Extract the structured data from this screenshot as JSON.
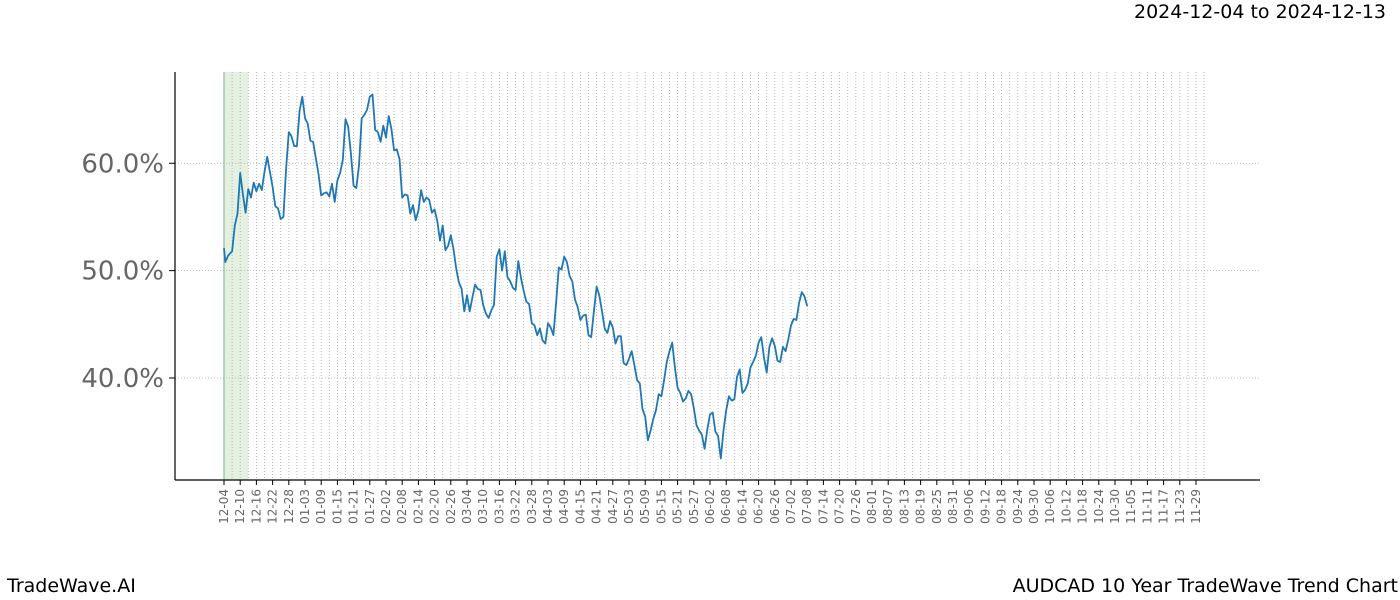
{
  "header": {
    "date_range": "2024-12-04 to 2024-12-13"
  },
  "footer": {
    "brand": "TradeWave.AI",
    "chart_title": "AUDCAD 10 Year TradeWave Trend Chart"
  },
  "colors": {
    "line": "#1f77b4",
    "highlight_fill": "#d9ead3",
    "grid": "#aaaaaa",
    "axis": "#000000",
    "tick_text": "#666666"
  },
  "chart_data": {
    "type": "line",
    "title": "AUDCAD 10 Year TradeWave Trend Chart",
    "xlabel": "",
    "ylabel": "",
    "ylim": [
      30.5,
      68.5
    ],
    "y_ticks": [
      40,
      50,
      60
    ],
    "y_tick_labels": [
      "40.0%",
      "50.0%",
      "60.0%"
    ],
    "y_unit": "%",
    "x_tick_labels": [
      "12-04",
      "12-10",
      "12-16",
      "12-22",
      "12-28",
      "01-03",
      "01-09",
      "01-15",
      "01-21",
      "01-27",
      "02-02",
      "02-08",
      "02-14",
      "02-20",
      "02-26",
      "03-04",
      "03-10",
      "03-16",
      "03-22",
      "03-28",
      "04-03",
      "04-09",
      "04-15",
      "04-21",
      "04-27",
      "05-03",
      "05-09",
      "05-15",
      "05-21",
      "05-27",
      "06-02",
      "06-08",
      "06-14",
      "06-20",
      "06-26",
      "07-02",
      "07-08",
      "07-14",
      "07-20",
      "07-26",
      "08-01",
      "08-07",
      "08-13",
      "08-19",
      "08-25",
      "08-31",
      "09-06",
      "09-12",
      "09-18",
      "09-24",
      "09-30",
      "10-06",
      "10-12",
      "10-18",
      "10-24",
      "10-30",
      "11-05",
      "11-11",
      "11-17",
      "11-23",
      "11-29"
    ],
    "x_tick_step_days": 6,
    "highlight": {
      "start": "12-04",
      "end": "12-13"
    },
    "grid": true,
    "series": [
      {
        "name": "",
        "points_day_value": [
          [
            0,
            52.1
          ],
          [
            0.5,
            50.8
          ],
          [
            1.5,
            51.4
          ],
          [
            3,
            51.8
          ],
          [
            4,
            54.2
          ],
          [
            5,
            55.3
          ],
          [
            6,
            59.1
          ],
          [
            7,
            57.1
          ],
          [
            8,
            55.4
          ],
          [
            9,
            57.6
          ],
          [
            10,
            56.8
          ],
          [
            11,
            58.2
          ],
          [
            12,
            57.4
          ],
          [
            13,
            58.1
          ],
          [
            14,
            57.5
          ],
          [
            15,
            59.2
          ],
          [
            16,
            60.6
          ],
          [
            17,
            59.2
          ],
          [
            18,
            57.8
          ],
          [
            19,
            56.0
          ],
          [
            20,
            55.8
          ],
          [
            21,
            54.8
          ],
          [
            22,
            55.0
          ],
          [
            23,
            59.5
          ],
          [
            24,
            62.9
          ],
          [
            25,
            62.5
          ],
          [
            26,
            61.6
          ],
          [
            27,
            61.6
          ],
          [
            28,
            64.9
          ],
          [
            29,
            66.2
          ],
          [
            30,
            64.2
          ],
          [
            31,
            63.7
          ],
          [
            32,
            62.1
          ],
          [
            33,
            62.0
          ],
          [
            34,
            60.5
          ],
          [
            35,
            59.0
          ],
          [
            36,
            57.0
          ],
          [
            37,
            57.2
          ],
          [
            38,
            57.3
          ],
          [
            39,
            56.9
          ],
          [
            40,
            58.1
          ],
          [
            41,
            56.4
          ],
          [
            42,
            58.4
          ],
          [
            43,
            59.1
          ],
          [
            44,
            60.3
          ],
          [
            45,
            64.1
          ],
          [
            46,
            63.4
          ],
          [
            47,
            60.9
          ],
          [
            48,
            57.9
          ],
          [
            49,
            57.7
          ],
          [
            50,
            59.8
          ],
          [
            51,
            64.2
          ],
          [
            52,
            64.5
          ],
          [
            53,
            65.0
          ],
          [
            54,
            66.2
          ],
          [
            55,
            66.4
          ],
          [
            56,
            63.1
          ],
          [
            57,
            62.9
          ],
          [
            58,
            62.0
          ],
          [
            59,
            63.5
          ],
          [
            60,
            62.4
          ],
          [
            61,
            64.4
          ],
          [
            62,
            63.2
          ],
          [
            63,
            61.2
          ],
          [
            64,
            61.3
          ],
          [
            65,
            60.4
          ],
          [
            66,
            56.8
          ],
          [
            67,
            57.1
          ],
          [
            68,
            57.0
          ],
          [
            69,
            55.3
          ],
          [
            70,
            56.1
          ],
          [
            71,
            54.7
          ],
          [
            72,
            55.6
          ],
          [
            73,
            57.5
          ],
          [
            74,
            56.4
          ],
          [
            75,
            56.8
          ],
          [
            76,
            56.6
          ],
          [
            77,
            55.4
          ],
          [
            78,
            55.7
          ],
          [
            79,
            54.6
          ],
          [
            80,
            52.8
          ],
          [
            81,
            54.2
          ],
          [
            82,
            51.9
          ],
          [
            83,
            52.3
          ],
          [
            84,
            53.3
          ],
          [
            85,
            52.0
          ],
          [
            86,
            50.2
          ],
          [
            87,
            48.9
          ],
          [
            88,
            48.3
          ],
          [
            89,
            46.2
          ],
          [
            90,
            47.7
          ],
          [
            91,
            46.2
          ],
          [
            92,
            47.5
          ],
          [
            93,
            48.7
          ],
          [
            94,
            48.3
          ],
          [
            95,
            48.2
          ],
          [
            96,
            46.8
          ],
          [
            97,
            46.0
          ],
          [
            98,
            45.6
          ],
          [
            99,
            46.3
          ],
          [
            100,
            46.8
          ],
          [
            101,
            51.3
          ],
          [
            102,
            52.0
          ],
          [
            103,
            50.0
          ],
          [
            104,
            51.8
          ],
          [
            105,
            49.4
          ],
          [
            106,
            49.0
          ],
          [
            107,
            48.4
          ],
          [
            108,
            48.2
          ],
          [
            109,
            50.9
          ],
          [
            110,
            49.3
          ],
          [
            111,
            48.1
          ],
          [
            112,
            47.1
          ],
          [
            113,
            46.9
          ],
          [
            114,
            45.1
          ],
          [
            115,
            44.9
          ],
          [
            116,
            44.0
          ],
          [
            117,
            44.6
          ],
          [
            118,
            43.5
          ],
          [
            119,
            43.2
          ],
          [
            120,
            45.1
          ],
          [
            121,
            44.7
          ],
          [
            122,
            44.0
          ],
          [
            123,
            47.0
          ],
          [
            124,
            50.3
          ],
          [
            125,
            50.1
          ],
          [
            126,
            51.3
          ],
          [
            127,
            50.8
          ],
          [
            128,
            49.5
          ],
          [
            129,
            49.0
          ],
          [
            130,
            47.3
          ],
          [
            131,
            46.6
          ],
          [
            132,
            45.4
          ],
          [
            133,
            45.8
          ],
          [
            134,
            45.9
          ],
          [
            135,
            44.0
          ],
          [
            136,
            43.8
          ],
          [
            137,
            46.2
          ],
          [
            138,
            48.5
          ],
          [
            139,
            47.7
          ],
          [
            140,
            46.2
          ],
          [
            141,
            44.6
          ],
          [
            142,
            44.2
          ],
          [
            143,
            45.3
          ],
          [
            144,
            44.7
          ],
          [
            145,
            43.2
          ],
          [
            146,
            43.9
          ],
          [
            147,
            43.9
          ],
          [
            148,
            41.4
          ],
          [
            149,
            41.2
          ],
          [
            150,
            41.8
          ],
          [
            151,
            42.5
          ],
          [
            152,
            41.2
          ],
          [
            153,
            39.8
          ],
          [
            154,
            39.5
          ],
          [
            155,
            37.1
          ],
          [
            156,
            36.4
          ],
          [
            157,
            34.2
          ],
          [
            158,
            35.1
          ],
          [
            159,
            36.2
          ],
          [
            160,
            37.0
          ],
          [
            161,
            38.5
          ],
          [
            162,
            38.3
          ],
          [
            163,
            39.8
          ],
          [
            164,
            41.5
          ],
          [
            165,
            42.5
          ],
          [
            166,
            43.3
          ],
          [
            167,
            41.0
          ],
          [
            168,
            39.1
          ],
          [
            169,
            38.6
          ],
          [
            170,
            37.8
          ],
          [
            171,
            38.1
          ],
          [
            172,
            38.8
          ],
          [
            173,
            38.5
          ],
          [
            174,
            37.2
          ],
          [
            175,
            35.6
          ],
          [
            176,
            35.1
          ],
          [
            177,
            34.7
          ],
          [
            178,
            33.4
          ],
          [
            179,
            35.2
          ],
          [
            180,
            36.6
          ],
          [
            181,
            36.8
          ],
          [
            182,
            35.0
          ],
          [
            183,
            34.6
          ],
          [
            184,
            32.5
          ],
          [
            185,
            35.1
          ],
          [
            186,
            37.0
          ],
          [
            187,
            38.3
          ],
          [
            188,
            37.9
          ],
          [
            189,
            38.0
          ],
          [
            190,
            40.1
          ],
          [
            191,
            40.8
          ],
          [
            192,
            38.6
          ],
          [
            193,
            38.9
          ],
          [
            194,
            39.5
          ],
          [
            195,
            41.0
          ],
          [
            196,
            41.5
          ],
          [
            197,
            42.1
          ],
          [
            198,
            43.3
          ],
          [
            199,
            43.8
          ],
          [
            200,
            41.9
          ],
          [
            201,
            40.5
          ],
          [
            202,
            42.9
          ],
          [
            203,
            43.7
          ],
          [
            204,
            43.0
          ],
          [
            205,
            41.6
          ],
          [
            206,
            41.5
          ],
          [
            207,
            42.9
          ],
          [
            208,
            42.5
          ],
          [
            209,
            43.6
          ],
          [
            210,
            44.9
          ],
          [
            211,
            45.5
          ],
          [
            212,
            45.4
          ],
          [
            213,
            47.0
          ],
          [
            214,
            48.0
          ],
          [
            215,
            47.6
          ],
          [
            216,
            46.7
          ]
        ]
      }
    ]
  }
}
